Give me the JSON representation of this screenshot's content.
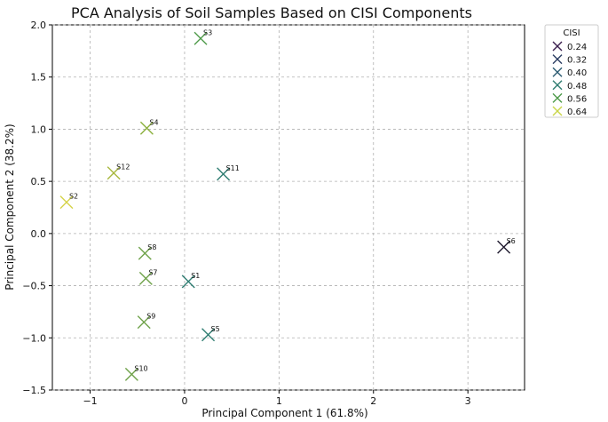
{
  "chart_data": {
    "type": "scatter",
    "title": "PCA Analysis of Soil Samples Based on CISI Components",
    "xlabel": "Principal Component 1 (61.8%)",
    "ylabel": "Principal Component 2 (38.2%)",
    "xlim": [
      -1.4,
      3.6
    ],
    "ylim": [
      -1.5,
      2.0
    ],
    "xticks": [
      -1,
      0,
      1,
      2,
      3
    ],
    "yticks": [
      -1.5,
      -1.0,
      -0.5,
      0.0,
      0.5,
      1.0,
      1.5,
      2.0
    ],
    "grid": true,
    "marker": "x",
    "legend": {
      "title": "CISI",
      "placement": "outside-top-right",
      "entries": [
        {
          "label": "0.24",
          "color": "#3b1f4f"
        },
        {
          "label": "0.32",
          "color": "#2c3e63"
        },
        {
          "label": "0.40",
          "color": "#2e5d73"
        },
        {
          "label": "0.48",
          "color": "#2f7d72"
        },
        {
          "label": "0.56",
          "color": "#4f9b4a"
        },
        {
          "label": "0.64",
          "color": "#c9d64a"
        }
      ]
    },
    "points": [
      {
        "label": "S1",
        "x": 0.04,
        "y": -0.46,
        "color": "#2f7d72"
      },
      {
        "label": "S2",
        "x": -1.25,
        "y": 0.3,
        "color": "#d5d34a"
      },
      {
        "label": "S3",
        "x": 0.17,
        "y": 1.87,
        "color": "#4f9b4a"
      },
      {
        "label": "S4",
        "x": -0.4,
        "y": 1.01,
        "color": "#8bb03e"
      },
      {
        "label": "S5",
        "x": 0.25,
        "y": -0.97,
        "color": "#2f7d72"
      },
      {
        "label": "S6",
        "x": 3.38,
        "y": -0.13,
        "color": "#1f1a2e"
      },
      {
        "label": "S7",
        "x": -0.41,
        "y": -0.43,
        "color": "#6fa24a"
      },
      {
        "label": "S8",
        "x": -0.42,
        "y": -0.19,
        "color": "#6fa24a"
      },
      {
        "label": "S9",
        "x": -0.43,
        "y": -0.85,
        "color": "#6fa24a"
      },
      {
        "label": "S10",
        "x": -0.56,
        "y": -1.35,
        "color": "#6fa24a"
      },
      {
        "label": "S11",
        "x": 0.41,
        "y": 0.57,
        "color": "#2f7d72"
      },
      {
        "label": "S12",
        "x": -0.75,
        "y": 0.58,
        "color": "#a8b83e"
      }
    ]
  }
}
